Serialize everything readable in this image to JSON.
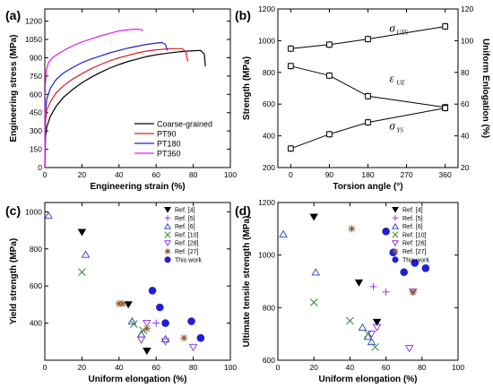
{
  "colors": {
    "Coarse-grained": "#000000",
    "PT90": "#e41a1c",
    "PT180": "#1f1fd6",
    "PT360": "#e61ee6",
    "Ref. [4]": "#000000",
    "Ref. [5]": "#9933ff",
    "Ref. [6]": "#1f3fbf",
    "Ref. [10]": "#2e8b2e",
    "Ref. [28]": "#8a2be2",
    "Ref. [26]": "#8a2be2",
    "Ref. [27]": "#8b5a2b",
    "This work": "#1f1fd6",
    "line_b": "#000000"
  },
  "chart_data": [
    {
      "panel": "(a)",
      "type": "line",
      "xlabel": "Engineering strain (%)",
      "ylabel": "Engineering stress (MPa)",
      "xlim": [
        0,
        100
      ],
      "ylim": [
        0,
        1300
      ],
      "xticks": [
        "0",
        "20",
        "40",
        "60",
        "80",
        "100"
      ],
      "yticks": [
        "0",
        "150",
        "300",
        "450",
        "600",
        "750",
        "900",
        "1050",
        "1200"
      ],
      "ytick_values": [
        0,
        150,
        300,
        450,
        600,
        750,
        900,
        1050,
        1200
      ],
      "xtick_values": [
        0,
        20,
        40,
        60,
        80,
        100
      ],
      "legend_position": "bottom-right",
      "series": [
        {
          "name": "Coarse-grained",
          "x": [
            0,
            0.4,
            1,
            3,
            6,
            10,
            15,
            20,
            25,
            30,
            35,
            40,
            45,
            50,
            55,
            60,
            65,
            70,
            75,
            80,
            84,
            86,
            86.5
          ],
          "y": [
            0,
            250,
            330,
            420,
            500,
            575,
            640,
            695,
            740,
            780,
            815,
            845,
            870,
            890,
            910,
            925,
            935,
            945,
            952,
            958,
            960,
            930,
            830
          ]
        },
        {
          "name": "PT90",
          "x": [
            0,
            0.4,
            1,
            3,
            6,
            10,
            15,
            20,
            25,
            30,
            35,
            40,
            45,
            50,
            55,
            60,
            65,
            70,
            74,
            76,
            77
          ],
          "y": [
            0,
            380,
            470,
            540,
            610,
            670,
            725,
            770,
            810,
            845,
            875,
            900,
            920,
            940,
            955,
            965,
            972,
            975,
            975,
            950,
            870
          ]
        },
        {
          "name": "PT180",
          "x": [
            0,
            0.4,
            1,
            3,
            6,
            10,
            15,
            20,
            25,
            30,
            35,
            40,
            45,
            50,
            55,
            60,
            63,
            65,
            66
          ],
          "y": [
            0,
            450,
            560,
            650,
            720,
            775,
            820,
            860,
            890,
            915,
            940,
            960,
            980,
            995,
            1010,
            1020,
            1025,
            1010,
            960
          ]
        },
        {
          "name": "PT360",
          "x": [
            0,
            0.3,
            0.8,
            2,
            4,
            8,
            12,
            16,
            20,
            25,
            30,
            35,
            40,
            45,
            50,
            52,
            53
          ],
          "y": [
            0,
            680,
            800,
            860,
            900,
            940,
            975,
            1005,
            1030,
            1055,
            1080,
            1100,
            1120,
            1130,
            1135,
            1130,
            1120
          ]
        }
      ]
    },
    {
      "panel": "(b)",
      "type": "line",
      "xlabel": "Torsion angle (°)",
      "ylabel": "Strength (MPa)",
      "y2label": "Uniform Enlogation (%)",
      "xlim": [
        -30,
        390
      ],
      "ylim": [
        200,
        1200
      ],
      "y2lim": [
        20,
        120
      ],
      "xticks": [
        "0",
        "90",
        "180",
        "270",
        "360"
      ],
      "xtick_values": [
        0,
        90,
        180,
        270,
        360
      ],
      "yticks": [
        "200",
        "400",
        "600",
        "800",
        "1000",
        "1200"
      ],
      "ytick_values": [
        200,
        400,
        600,
        800,
        1000,
        1200
      ],
      "y2ticks": [
        "20",
        "40",
        "60",
        "80",
        "100",
        "120"
      ],
      "y2tick_values": [
        20,
        40,
        60,
        80,
        100,
        120
      ],
      "annotations": [
        {
          "text": "σ",
          "sub": "UTS",
          "x": 230,
          "y": 1055
        },
        {
          "text": "ε",
          "sub": "UE",
          "x": 230,
          "y": 740
        },
        {
          "text": "σ",
          "sub": "YS",
          "x": 230,
          "y": 440
        }
      ],
      "series": [
        {
          "name": "UTS",
          "axis": "left",
          "x": [
            0,
            90,
            180,
            360
          ],
          "y": [
            950,
            975,
            1010,
            1090
          ]
        },
        {
          "name": "UE",
          "axis": "right",
          "x": [
            0,
            90,
            180,
            360
          ],
          "y": [
            84,
            78,
            65,
            58
          ]
        },
        {
          "name": "YS",
          "axis": "left",
          "x": [
            0,
            90,
            180,
            360
          ],
          "y": [
            320,
            410,
            485,
            575
          ]
        }
      ]
    },
    {
      "panel": "(c)",
      "type": "scatter",
      "xlabel": "Uniform elongation (%)",
      "ylabel": "Yield strength (MPa)",
      "xlim": [
        0,
        100
      ],
      "ylim": [
        200,
        1050
      ],
      "xticks": [
        "0",
        "20",
        "40",
        "60",
        "80",
        "100"
      ],
      "xtick_values": [
        0,
        20,
        40,
        60,
        80,
        100
      ],
      "yticks": [
        "400",
        "600",
        "800",
        "1000"
      ],
      "ytick_values": [
        400,
        600,
        800,
        1000
      ],
      "legend_position": "top-right",
      "series": [
        {
          "name": "Ref. [4]",
          "marker": "tri-down-filled",
          "x": [
            20,
            45,
            55
          ],
          "y": [
            890,
            500,
            250
          ]
        },
        {
          "name": "Ref. [5]",
          "marker": "plus",
          "x": [
            60
          ],
          "y": [
            400
          ]
        },
        {
          "name": "Ref. [6]",
          "marker": "tri-up",
          "x": [
            2,
            22,
            47,
            52,
            65
          ],
          "y": [
            980,
            770,
            410,
            340,
            315
          ]
        },
        {
          "name": "Ref. [10]",
          "marker": "x",
          "x": [
            20,
            48,
            53
          ],
          "y": [
            675,
            395,
            360
          ]
        },
        {
          "name": "Ref. [28]",
          "marker": "tri-down",
          "x": [
            52,
            55,
            65,
            80
          ],
          "y": [
            310,
            400,
            300,
            270
          ]
        },
        {
          "name": "Ref. [27]",
          "marker": "asterisk",
          "x": [
            40,
            42,
            55,
            75
          ],
          "y": [
            505,
            505,
            370,
            320
          ]
        },
        {
          "name": "This work",
          "marker": "circle",
          "x": [
            58,
            62,
            65,
            79,
            84
          ],
          "y": [
            575,
            485,
            400,
            410,
            320
          ]
        }
      ]
    },
    {
      "panel": "(d)",
      "type": "scatter",
      "xlabel": "Uniform elongation (%)",
      "ylabel": "Ultimate tensile strength (MPa)",
      "xlim": [
        0,
        100
      ],
      "ylim": [
        600,
        1200
      ],
      "xticks": [
        "0",
        "20",
        "40",
        "60",
        "80",
        "100"
      ],
      "xtick_values": [
        0,
        20,
        40,
        60,
        80,
        100
      ],
      "yticks": [
        "600",
        "800",
        "1000",
        "1200"
      ],
      "ytick_values": [
        600,
        800,
        1000,
        1200
      ],
      "legend_position": "top-right",
      "series": [
        {
          "name": "Ref. [4]",
          "marker": "tri-down-filled",
          "x": [
            20,
            45,
            55
          ],
          "y": [
            1145,
            895,
            745
          ]
        },
        {
          "name": "Ref. [5]",
          "marker": "plus",
          "x": [
            53,
            60
          ],
          "y": [
            880,
            860
          ]
        },
        {
          "name": "Ref. [6]",
          "marker": "tri-up",
          "x": [
            3,
            21,
            47,
            50,
            52
          ],
          "y": [
            1080,
            935,
            725,
            690,
            670
          ]
        },
        {
          "name": "Ref. [10]",
          "marker": "x",
          "x": [
            20,
            40,
            50,
            54
          ],
          "y": [
            820,
            750,
            700,
            650
          ]
        },
        {
          "name": "Ref. [26]",
          "marker": "tri-down",
          "x": [
            52,
            55,
            73,
            75
          ],
          "y": [
            700,
            725,
            645,
            860
          ]
        },
        {
          "name": "Ref. [27]",
          "marker": "asterisk",
          "x": [
            41,
            75
          ],
          "y": [
            1100,
            860
          ]
        },
        {
          "name": "This work",
          "marker": "circle",
          "x": [
            60,
            64,
            70,
            76,
            82
          ],
          "y": [
            1090,
            1010,
            935,
            970,
            950
          ]
        }
      ]
    }
  ]
}
